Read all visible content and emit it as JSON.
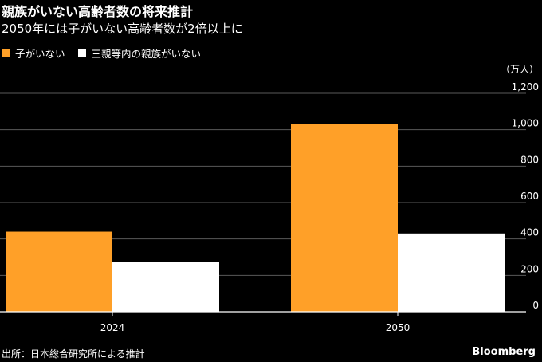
{
  "header": {
    "title": "親族がいない高齢者数の将来推計",
    "subtitle": "2050年には子がいない高齢者数が2倍以上に"
  },
  "legend": [
    {
      "label": "子がいない",
      "color": "#FFA028"
    },
    {
      "label": "三親等内の親族がいない",
      "color": "#FFFFFF"
    }
  ],
  "chart_data": {
    "type": "bar",
    "categories": [
      "2024",
      "2050"
    ],
    "series": [
      {
        "name": "子がいない",
        "values": [
          440,
          1030
        ],
        "color": "#FFA028"
      },
      {
        "name": "三親等内の親族がいない",
        "values": [
          275,
          430
        ],
        "color": "#FFFFFF"
      }
    ],
    "unit_label": "（万人）",
    "ylim": [
      0,
      1200
    ],
    "yticks": [
      {
        "value": 0,
        "label": "0"
      },
      {
        "value": 200,
        "label": "200"
      },
      {
        "value": 400,
        "label": "400"
      },
      {
        "value": 600,
        "label": "600"
      },
      {
        "value": 800,
        "label": "800"
      },
      {
        "value": 1000,
        "label": "1,000"
      },
      {
        "value": 1200,
        "label": "1,200"
      }
    ],
    "grid": true,
    "legend_position": "top-left",
    "y_axis_side": "right"
  },
  "footer": {
    "source": "出所：日本総合研究所による推計",
    "brand": "Bloomberg"
  }
}
